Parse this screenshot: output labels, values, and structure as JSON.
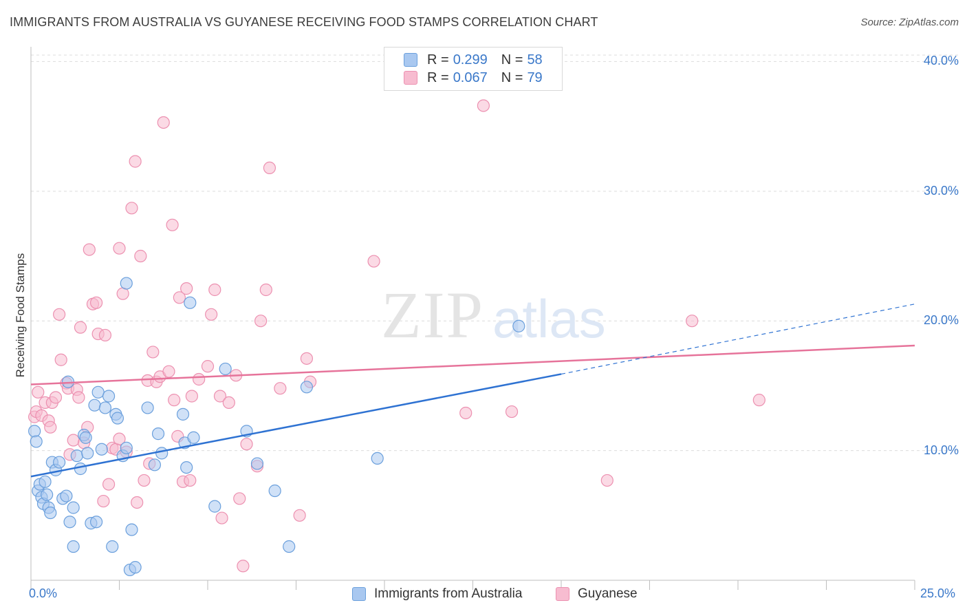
{
  "title": "IMMIGRANTS FROM AUSTRALIA VS GUYANESE RECEIVING FOOD STAMPS CORRELATION CHART",
  "source": "Source: ZipAtlas.com",
  "watermark": {
    "zip": "ZIP",
    "atlas": "atlas"
  },
  "legend": {
    "r_label": "R =",
    "n_label": "N =",
    "rows": [
      {
        "r": "0.299",
        "n": "58",
        "color": "#a9c8f0"
      },
      {
        "r": "0.067",
        "n": "79",
        "color": "#f7bcd0"
      }
    ]
  },
  "colors": {
    "blue_fill": "#a9c8f0",
    "blue_stroke": "#6a9fdc",
    "blue_line": "#2e72d2",
    "pink_fill": "#f7bcd0",
    "pink_stroke": "#ec90b0",
    "pink_line": "#e6739a",
    "tick_text": "#3a78c9",
    "grid": "#dcdcdc"
  },
  "chart_data": {
    "type": "scatter",
    "title": "IMMIGRANTS FROM AUSTRALIA VS GUYANESE RECEIVING FOOD STAMPS CORRELATION CHART",
    "xlabel": "",
    "ylabel": "Receiving Food Stamps",
    "xlim": [
      0,
      25
    ],
    "ylim": [
      0,
      40.5
    ],
    "x_tick_labels": [
      "0.0%",
      "25.0%"
    ],
    "y_ticks": [
      10,
      20,
      30,
      40
    ],
    "y_tick_labels": [
      "10.0%",
      "20.0%",
      "30.0%",
      "40.0%"
    ],
    "grid": true,
    "legend_position": "top-center",
    "series": [
      {
        "name": "Immigrants from Australia",
        "color": "#a9c8f0",
        "trend": {
          "x": [
            0,
            15
          ],
          "y": [
            8.0,
            15.9
          ],
          "dashed_extension_to": [
            25,
            21.3
          ]
        },
        "points": [
          [
            0.1,
            11.5
          ],
          [
            0.15,
            10.7
          ],
          [
            0.2,
            6.9
          ],
          [
            0.25,
            7.4
          ],
          [
            0.3,
            6.4
          ],
          [
            0.35,
            5.9
          ],
          [
            0.4,
            7.6
          ],
          [
            0.45,
            6.6
          ],
          [
            0.5,
            5.6
          ],
          [
            0.55,
            5.2
          ],
          [
            0.6,
            9.1
          ],
          [
            0.7,
            8.5
          ],
          [
            0.8,
            9.1
          ],
          [
            0.9,
            6.3
          ],
          [
            1.0,
            6.5
          ],
          [
            1.05,
            15.3
          ],
          [
            1.1,
            4.5
          ],
          [
            1.2,
            5.6
          ],
          [
            1.3,
            9.6
          ],
          [
            1.4,
            8.6
          ],
          [
            1.5,
            11.2
          ],
          [
            1.55,
            11.0
          ],
          [
            1.6,
            9.8
          ],
          [
            1.7,
            4.4
          ],
          [
            1.8,
            13.5
          ],
          [
            1.85,
            4.5
          ],
          [
            1.9,
            14.5
          ],
          [
            2.0,
            10.1
          ],
          [
            2.1,
            13.3
          ],
          [
            2.2,
            14.2
          ],
          [
            2.3,
            2.6
          ],
          [
            2.4,
            12.8
          ],
          [
            2.45,
            12.5
          ],
          [
            2.6,
            9.6
          ],
          [
            2.7,
            10.2
          ],
          [
            2.8,
            0.8
          ],
          [
            2.85,
            3.9
          ],
          [
            2.95,
            1.0
          ],
          [
            3.3,
            13.3
          ],
          [
            3.5,
            8.9
          ],
          [
            3.6,
            11.3
          ],
          [
            3.7,
            9.8
          ],
          [
            4.3,
            12.8
          ],
          [
            4.35,
            10.6
          ],
          [
            4.4,
            8.7
          ],
          [
            4.5,
            21.4
          ],
          [
            4.6,
            11.0
          ],
          [
            5.2,
            5.7
          ],
          [
            5.5,
            16.3
          ],
          [
            6.1,
            11.5
          ],
          [
            6.4,
            9.0
          ],
          [
            6.9,
            6.9
          ],
          [
            7.3,
            2.6
          ],
          [
            7.8,
            14.9
          ],
          [
            9.8,
            9.4
          ],
          [
            13.8,
            19.6
          ],
          [
            2.7,
            22.9
          ],
          [
            1.2,
            2.6
          ]
        ]
      },
      {
        "name": "Guyanese",
        "color": "#f7bcd0",
        "trend": {
          "x": [
            0,
            25
          ],
          "y": [
            15.1,
            18.1
          ]
        },
        "points": [
          [
            0.1,
            12.6
          ],
          [
            0.15,
            13.0
          ],
          [
            0.2,
            14.5
          ],
          [
            0.3,
            12.7
          ],
          [
            0.4,
            13.7
          ],
          [
            0.5,
            12.3
          ],
          [
            0.55,
            11.8
          ],
          [
            0.6,
            13.7
          ],
          [
            0.7,
            14.1
          ],
          [
            0.8,
            20.5
          ],
          [
            0.85,
            17.0
          ],
          [
            1.0,
            15.2
          ],
          [
            1.05,
            14.8
          ],
          [
            1.1,
            9.7
          ],
          [
            1.2,
            10.8
          ],
          [
            1.3,
            14.7
          ],
          [
            1.35,
            14.1
          ],
          [
            1.4,
            19.5
          ],
          [
            1.5,
            10.6
          ],
          [
            1.6,
            11.8
          ],
          [
            1.65,
            25.5
          ],
          [
            1.75,
            21.3
          ],
          [
            1.85,
            21.4
          ],
          [
            1.9,
            19.0
          ],
          [
            2.05,
            6.1
          ],
          [
            2.1,
            18.9
          ],
          [
            2.2,
            7.4
          ],
          [
            2.3,
            10.2
          ],
          [
            2.4,
            10.1
          ],
          [
            2.5,
            10.9
          ],
          [
            2.5,
            25.6
          ],
          [
            2.6,
            22.1
          ],
          [
            2.7,
            9.9
          ],
          [
            2.85,
            28.7
          ],
          [
            2.95,
            32.3
          ],
          [
            3.0,
            6.0
          ],
          [
            3.1,
            25.0
          ],
          [
            3.2,
            7.7
          ],
          [
            3.3,
            15.4
          ],
          [
            3.35,
            9.0
          ],
          [
            3.45,
            17.6
          ],
          [
            3.55,
            15.3
          ],
          [
            3.65,
            15.7
          ],
          [
            3.75,
            35.3
          ],
          [
            3.9,
            16.1
          ],
          [
            4.0,
            27.4
          ],
          [
            4.05,
            13.9
          ],
          [
            4.15,
            11.1
          ],
          [
            4.2,
            21.8
          ],
          [
            4.3,
            7.6
          ],
          [
            4.4,
            22.5
          ],
          [
            4.5,
            7.7
          ],
          [
            4.55,
            14.2
          ],
          [
            4.75,
            15.5
          ],
          [
            5.0,
            16.5
          ],
          [
            5.1,
            20.5
          ],
          [
            5.2,
            22.4
          ],
          [
            5.35,
            14.2
          ],
          [
            5.4,
            4.8
          ],
          [
            5.6,
            13.7
          ],
          [
            5.8,
            15.8
          ],
          [
            5.9,
            6.3
          ],
          [
            6.0,
            1.1
          ],
          [
            6.1,
            10.5
          ],
          [
            6.4,
            8.8
          ],
          [
            6.5,
            20.0
          ],
          [
            6.65,
            22.4
          ],
          [
            6.75,
            31.8
          ],
          [
            7.05,
            14.8
          ],
          [
            7.6,
            5.0
          ],
          [
            7.8,
            17.1
          ],
          [
            7.9,
            15.3
          ],
          [
            9.7,
            24.6
          ],
          [
            12.3,
            12.9
          ],
          [
            12.8,
            36.6
          ],
          [
            13.6,
            13.0
          ],
          [
            16.3,
            7.7
          ],
          [
            18.7,
            20.0
          ],
          [
            20.6,
            13.9
          ]
        ]
      }
    ]
  },
  "axis": {
    "x_min_label": "0.0%",
    "x_max_label": "25.0%",
    "y_label": "Receiving Food Stamps"
  }
}
